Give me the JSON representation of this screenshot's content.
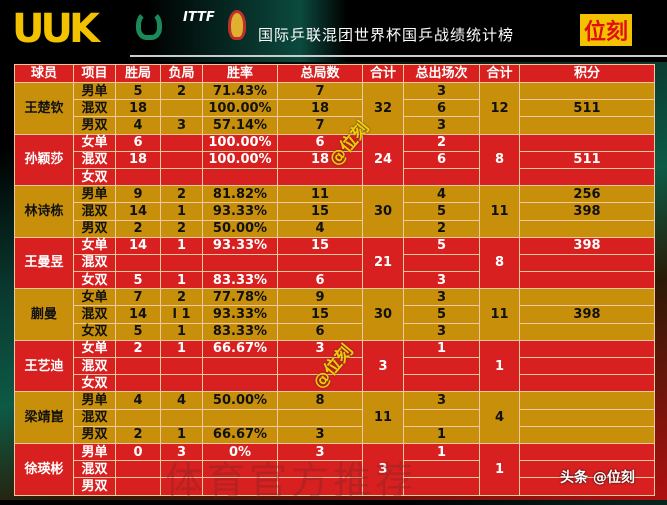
{
  "header": {
    "logo": "UUK",
    "itf_label": "ITTF",
    "title": "国际乒联混团世界杯国乒战绩统计榜",
    "brand": "位刻"
  },
  "columns": [
    "球员",
    "项目",
    "胜局",
    "负局",
    "胜率",
    "总局数",
    "合计",
    "总出场次",
    "合计",
    "积分"
  ],
  "colors": {
    "gold": "#c8900a",
    "red": "#d82020",
    "accent": "#f2c200"
  },
  "players": [
    {
      "name": "王楚钦",
      "total_games": "32",
      "total_apps": "12",
      "rows": [
        [
          "男单",
          "5",
          "2",
          "71.43%",
          "7",
          "3",
          ""
        ],
        [
          "混双",
          "18",
          "",
          "100.00%",
          "18",
          "6",
          "511"
        ],
        [
          "男双",
          "4",
          "3",
          "57.14%",
          "7",
          "3",
          ""
        ]
      ]
    },
    {
      "name": "孙颖莎",
      "total_games": "24",
      "total_apps": "8",
      "rows": [
        [
          "女单",
          "6",
          "",
          "100.00%",
          "6",
          "2",
          ""
        ],
        [
          "混双",
          "18",
          "",
          "100.00%",
          "18",
          "6",
          "511"
        ],
        [
          "女双",
          "",
          "",
          "",
          "",
          "",
          ""
        ]
      ]
    },
    {
      "name": "林诗栋",
      "total_games": "30",
      "total_apps": "11",
      "rows": [
        [
          "男单",
          "9",
          "2",
          "81.82%",
          "11",
          "4",
          "256"
        ],
        [
          "混双",
          "14",
          "1",
          "93.33%",
          "15",
          "5",
          "398"
        ],
        [
          "男双",
          "2",
          "2",
          "50.00%",
          "4",
          "2",
          ""
        ]
      ]
    },
    {
      "name": "王曼昱",
      "total_games": "21",
      "total_apps": "8",
      "rows": [
        [
          "女单",
          "14",
          "1",
          "93.33%",
          "15",
          "5",
          "398"
        ],
        [
          "混双",
          "",
          "",
          "",
          "",
          "",
          ""
        ],
        [
          "女双",
          "5",
          "1",
          "83.33%",
          "6",
          "3",
          ""
        ]
      ]
    },
    {
      "name": "蒯曼",
      "total_games": "30",
      "total_apps": "11",
      "rows": [
        [
          "女单",
          "7",
          "2",
          "77.78%",
          "9",
          "3",
          ""
        ],
        [
          "混双",
          "14",
          "l 1",
          "93.33%",
          "15",
          "5",
          "398"
        ],
        [
          "女双",
          "5",
          "1",
          "83.33%",
          "6",
          "3",
          ""
        ]
      ]
    },
    {
      "name": "王艺迪",
      "total_games": "3",
      "total_apps": "1",
      "rows": [
        [
          "女单",
          "2",
          "1",
          "66.67%",
          "3",
          "1",
          ""
        ],
        [
          "混双",
          "",
          "",
          "",
          "",
          "",
          ""
        ],
        [
          "女双",
          "",
          "",
          "",
          "",
          "",
          ""
        ]
      ]
    },
    {
      "name": "梁靖崑",
      "total_games": "11",
      "total_apps": "4",
      "rows": [
        [
          "男单",
          "4",
          "4",
          "50.00%",
          "8",
          "3",
          ""
        ],
        [
          "混双",
          "",
          "",
          "",
          "",
          "",
          ""
        ],
        [
          "男双",
          "2",
          "1",
          "66.67%",
          "3",
          "1",
          ""
        ]
      ]
    },
    {
      "name": "徐瑛彬",
      "total_games": "3",
      "total_apps": "1",
      "rows": [
        [
          "男单",
          "0",
          "3",
          "0%",
          "3",
          "1",
          ""
        ],
        [
          "混双",
          "",
          "",
          "",
          "",
          "",
          ""
        ],
        [
          "男双",
          "",
          "",
          "",
          "",
          "",
          ""
        ]
      ]
    }
  ],
  "watermarks": {
    "handle": "@位刻",
    "faint": "体育官方推荐",
    "credit": "头条 @位刻"
  }
}
